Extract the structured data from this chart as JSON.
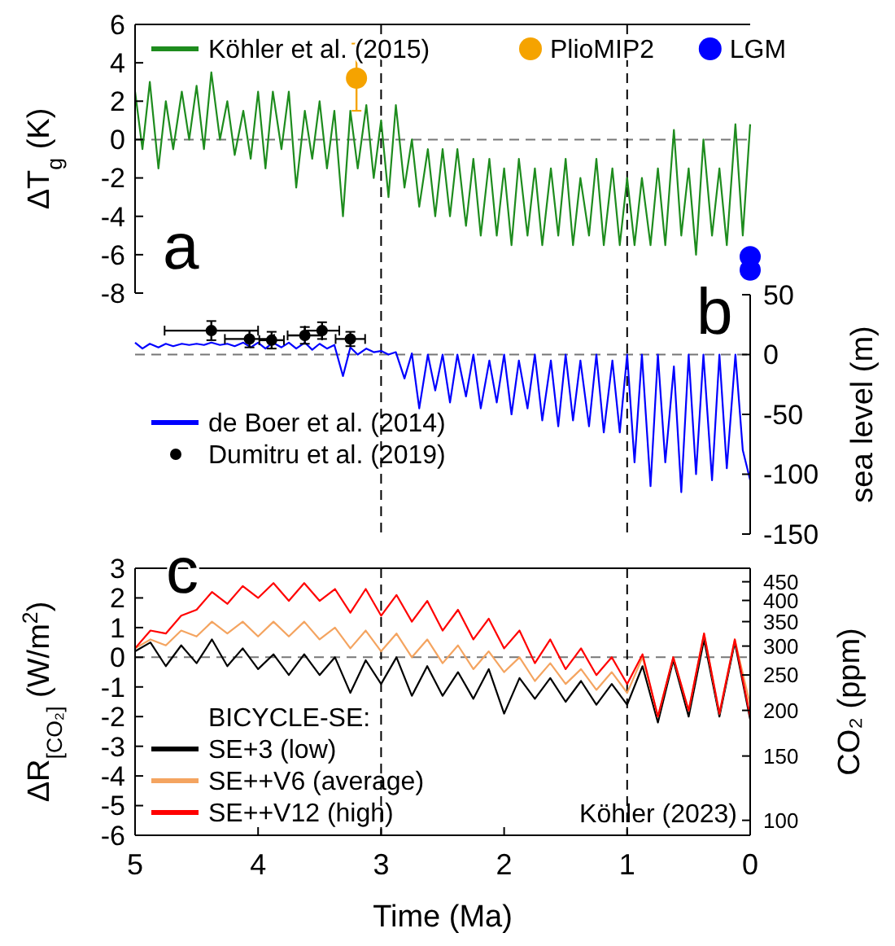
{
  "chart_data": [
    {
      "type": "line",
      "ylabel": "ΔT$_{g}$ (K)",
      "xlim": [
        5,
        0
      ],
      "ylim": [
        -8,
        6
      ],
      "yticks": [
        -8,
        -6,
        -4,
        -2,
        0,
        2,
        4,
        6
      ],
      "tick_labels": "y",
      "legend": "top",
      "annotations": [
        "a"
      ],
      "ref_lines": [
        {
          "axis": "y",
          "value": 0,
          "color": "#777777",
          "line_style": "dashed"
        },
        {
          "axis": "x",
          "value": 3,
          "color": "#000000",
          "line_style": "dashed"
        },
        {
          "axis": "x",
          "value": 1,
          "color": "#000000",
          "line_style": "dashed"
        }
      ],
      "series": [
        {
          "name": "Köhler et al. (2015)",
          "color": "#1e8c1e",
          "x": [
            5.0,
            4.94,
            4.88,
            4.81,
            4.75,
            4.69,
            4.62,
            4.56,
            4.5,
            4.44,
            4.38,
            4.31,
            4.25,
            4.19,
            4.12,
            4.06,
            4.0,
            3.94,
            3.88,
            3.81,
            3.75,
            3.69,
            3.62,
            3.56,
            3.5,
            3.44,
            3.38,
            3.31,
            3.25,
            3.19,
            3.12,
            3.06,
            3.0,
            2.94,
            2.88,
            2.81,
            2.75,
            2.69,
            2.62,
            2.56,
            2.5,
            2.44,
            2.38,
            2.31,
            2.25,
            2.19,
            2.12,
            2.06,
            2.0,
            1.94,
            1.88,
            1.81,
            1.75,
            1.69,
            1.62,
            1.56,
            1.5,
            1.44,
            1.38,
            1.31,
            1.25,
            1.19,
            1.12,
            1.06,
            1.0,
            0.94,
            0.88,
            0.81,
            0.75,
            0.69,
            0.62,
            0.56,
            0.5,
            0.44,
            0.38,
            0.31,
            0.25,
            0.19,
            0.12,
            0.06,
            0.0
          ],
          "values": [
            2.5,
            -0.5,
            3.0,
            -1.5,
            2.0,
            -0.5,
            2.5,
            0.0,
            2.8,
            -0.5,
            3.5,
            0.0,
            2.0,
            -0.8,
            1.5,
            -1.0,
            2.5,
            -1.5,
            2.5,
            -0.5,
            2.5,
            -2.5,
            1.5,
            -1.0,
            2.0,
            -1.5,
            1.5,
            -4.0,
            1.5,
            -1.5,
            1.8,
            -2.0,
            1.0,
            -3.0,
            1.8,
            -2.5,
            0.0,
            -3.5,
            -0.5,
            -4.0,
            -0.5,
            -4.0,
            -0.5,
            -4.5,
            -1.0,
            -5.0,
            -1.0,
            -5.0,
            -1.5,
            -5.5,
            -1.0,
            -5.0,
            -1.5,
            -5.5,
            -1.5,
            -5.0,
            -1.0,
            -5.5,
            -2.0,
            -5.0,
            -1.0,
            -5.5,
            -1.5,
            -5.5,
            -2.0,
            -5.5,
            -2.0,
            -5.5,
            -1.5,
            -5.5,
            0.5,
            -5.0,
            -1.5,
            -6.0,
            0.0,
            -5.0,
            -1.5,
            -5.5,
            0.8,
            -5.0,
            0.8
          ]
        },
        {
          "name": "PlioMIP2",
          "type": "scatter",
          "marker": "circle",
          "color": "#f5a300",
          "x": [
            3.2
          ],
          "values": [
            3.2
          ],
          "errors": [
            [
              1.5,
              5.0
            ]
          ]
        },
        {
          "name": "LGM",
          "type": "scatter",
          "marker": "circle",
          "color": "#0000ff",
          "x": [
            0.0,
            0.0
          ],
          "values": [
            -6.1,
            -6.8
          ]
        }
      ]
    },
    {
      "type": "line",
      "y2label": "sea level (m)",
      "xlim": [
        5,
        0
      ],
      "y2lim": [
        -150,
        50
      ],
      "y2ticks": [
        -150,
        -100,
        -50,
        0,
        50
      ],
      "tick_labels": "y2",
      "legend": "left",
      "annotations": [
        "b"
      ],
      "ref_lines": [
        {
          "axis": "y2",
          "value": 0,
          "color": "#777777",
          "line_style": "dashed"
        },
        {
          "axis": "x",
          "value": 3,
          "color": "#000000",
          "line_style": "dashed"
        },
        {
          "axis": "x",
          "value": 1,
          "color": "#000000",
          "line_style": "dashed"
        }
      ],
      "series": [
        {
          "name": "de Boer et al. (2014)",
          "color": "#0000ff",
          "axis": "y2",
          "x": [
            5.0,
            4.94,
            4.88,
            4.81,
            4.75,
            4.69,
            4.62,
            4.56,
            4.5,
            4.44,
            4.38,
            4.31,
            4.25,
            4.19,
            4.12,
            4.06,
            4.0,
            3.94,
            3.88,
            3.81,
            3.75,
            3.69,
            3.62,
            3.56,
            3.5,
            3.44,
            3.38,
            3.31,
            3.25,
            3.19,
            3.12,
            3.06,
            3.0,
            2.94,
            2.88,
            2.81,
            2.75,
            2.69,
            2.62,
            2.56,
            2.5,
            2.44,
            2.38,
            2.31,
            2.25,
            2.19,
            2.12,
            2.06,
            2.0,
            1.94,
            1.88,
            1.81,
            1.75,
            1.69,
            1.62,
            1.56,
            1.5,
            1.44,
            1.38,
            1.31,
            1.25,
            1.19,
            1.12,
            1.06,
            1.0,
            0.94,
            0.88,
            0.81,
            0.75,
            0.69,
            0.62,
            0.56,
            0.5,
            0.44,
            0.38,
            0.31,
            0.25,
            0.19,
            0.12,
            0.06,
            0.0
          ],
          "values": [
            10,
            5,
            9,
            6,
            9,
            7,
            9,
            8,
            9,
            8,
            10,
            8,
            9,
            7,
            10,
            6,
            10,
            5,
            10,
            6,
            10,
            5,
            10,
            4,
            9,
            5,
            8,
            -18,
            6,
            0,
            5,
            2,
            3,
            0,
            2,
            -20,
            1,
            -45,
            0,
            -30,
            0,
            -40,
            0,
            -35,
            0,
            -45,
            -5,
            -40,
            0,
            -50,
            -5,
            -45,
            0,
            -55,
            -5,
            -60,
            0,
            -55,
            -5,
            -60,
            0,
            -65,
            -5,
            -65,
            0,
            -90,
            0,
            -110,
            0,
            -90,
            -10,
            -115,
            0,
            -100,
            0,
            -105,
            0,
            -95,
            0,
            -80,
            -105
          ]
        },
        {
          "name": "Dumitru et al. (2019)",
          "type": "scatter",
          "marker": "circle",
          "color": "#000000",
          "axis": "y2",
          "x": [
            4.38,
            4.07,
            3.89,
            3.62,
            3.48,
            3.25
          ],
          "values": [
            20,
            13,
            12,
            16,
            20,
            13
          ],
          "errors": [
            8,
            7,
            7,
            7,
            7,
            6
          ],
          "xerrors": [
            0.38,
            0.2,
            0.1,
            0.14,
            0.14,
            0.12
          ]
        }
      ]
    },
    {
      "type": "line",
      "ylabel": "ΔR$_{[CO₂]}$ (W/m$^{2}$)",
      "y2label": "CO₂ (ppm)",
      "xlabel": "Time (Ma)",
      "xlim": [
        5,
        0
      ],
      "xticks": [
        5,
        4,
        3,
        2,
        1,
        0
      ],
      "ylim": [
        -6,
        3
      ],
      "yticks": [
        -6,
        -5,
        -4,
        -3,
        -2,
        -1,
        0,
        1,
        2,
        3
      ],
      "y2lim": [
        91,
        490
      ],
      "y2ticks": [
        100,
        150,
        200,
        250,
        300,
        350,
        400,
        450
      ],
      "log": "y2",
      "legend": "bottom left",
      "legend_title": "BICYCLE-SE:",
      "annotations": [
        "c",
        "Köhler (2023)"
      ],
      "ref_lines": [
        {
          "axis": "y",
          "value": 0,
          "color": "#777777",
          "line_style": "dashed"
        },
        {
          "axis": "x",
          "value": 3,
          "color": "#000000",
          "line_style": "dashed"
        },
        {
          "axis": "x",
          "value": 1,
          "color": "#000000",
          "line_style": "dashed"
        }
      ],
      "x": [
        5.0,
        4.875,
        4.75,
        4.625,
        4.5,
        4.375,
        4.25,
        4.125,
        4.0,
        3.875,
        3.75,
        3.625,
        3.5,
        3.375,
        3.25,
        3.125,
        3.0,
        2.875,
        2.75,
        2.625,
        2.5,
        2.375,
        2.25,
        2.125,
        2.0,
        1.875,
        1.75,
        1.625,
        1.5,
        1.375,
        1.25,
        1.125,
        1.0,
        0.875,
        0.75,
        0.625,
        0.5,
        0.375,
        0.25,
        0.125,
        0.0
      ],
      "series": [
        {
          "name": "SE+3 (low)",
          "color": "#000000",
          "values": [
            0.2,
            0.5,
            -0.3,
            0.4,
            -0.2,
            0.6,
            -0.3,
            0.3,
            -0.4,
            0.1,
            -0.6,
            0.1,
            -0.6,
            0.0,
            -1.2,
            -0.1,
            -0.9,
            0.0,
            -1.3,
            -0.3,
            -1.3,
            -0.5,
            -1.4,
            -0.4,
            -1.9,
            -0.7,
            -1.4,
            -0.7,
            -1.5,
            -0.8,
            -1.6,
            -0.9,
            -1.6,
            -0.3,
            -2.2,
            -0.1,
            -2.0,
            0.6,
            -2.0,
            0.5,
            -2.1
          ]
        },
        {
          "name": "SE++V6 (average)",
          "color": "#f4a460",
          "values": [
            0.3,
            0.6,
            0.4,
            0.9,
            0.7,
            1.2,
            0.8,
            1.2,
            0.7,
            1.2,
            0.7,
            1.2,
            0.6,
            1.0,
            0.3,
            0.9,
            0.2,
            0.8,
            0.0,
            0.6,
            -0.2,
            0.4,
            -0.4,
            0.2,
            -0.5,
            0.0,
            -0.8,
            -0.2,
            -0.9,
            -0.4,
            -1.1,
            -0.5,
            -1.2,
            0.0,
            -2.0,
            0.0,
            -1.8,
            0.8,
            -1.9,
            0.6,
            -1.6
          ]
        },
        {
          "name": "SE++V12 (high)",
          "color": "#ff0000",
          "values": [
            0.3,
            0.9,
            0.8,
            1.4,
            1.6,
            2.2,
            1.8,
            2.4,
            2.0,
            2.5,
            1.9,
            2.5,
            1.9,
            2.3,
            1.5,
            2.3,
            1.4,
            2.1,
            1.2,
            1.9,
            0.9,
            1.6,
            0.6,
            1.3,
            0.3,
            0.9,
            -0.2,
            0.6,
            -0.4,
            0.3,
            -0.6,
            0.0,
            -0.9,
            0.1,
            -2.0,
            0.0,
            -1.8,
            0.8,
            -1.9,
            0.6,
            -2.0
          ]
        }
      ]
    }
  ]
}
